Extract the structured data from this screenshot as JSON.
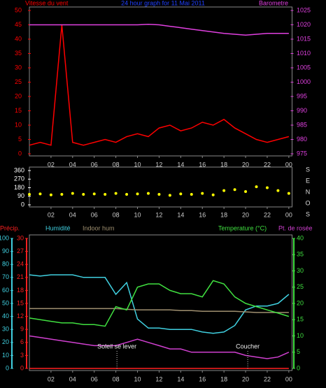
{
  "chart_data": [
    {
      "type": "line",
      "title": "24 hour graph for 11 Mai 2011",
      "ylabel": "Vitesse du vent",
      "y2label": "Barometre",
      "x": [
        0,
        1,
        2,
        3,
        4,
        5,
        6,
        7,
        8,
        9,
        10,
        11,
        12,
        13,
        14,
        15,
        16,
        17,
        18,
        19,
        20,
        21,
        22,
        23,
        24
      ],
      "xlim": [
        0,
        24.3
      ],
      "xticks": [
        {
          "value": 2,
          "label": "02"
        },
        {
          "value": 4,
          "label": "04"
        },
        {
          "value": 6,
          "label": "06"
        },
        {
          "value": 8,
          "label": "08"
        },
        10,
        12,
        14,
        16,
        18,
        20,
        22,
        {
          "value": 24,
          "label": "00"
        }
      ],
      "ylim": [
        0,
        50
      ],
      "yticks": [
        0,
        5,
        10,
        15,
        20,
        25,
        30,
        35,
        40,
        45,
        50
      ],
      "y2lim": [
        975,
        1025
      ],
      "y2ticks": [
        975,
        980,
        985,
        990,
        995,
        1000,
        1005,
        1010,
        1015,
        1020,
        1025
      ],
      "series": [
        {
          "name": "Vitesse du vent",
          "color": "#ff0000",
          "values": [
            3,
            4,
            3,
            45,
            4,
            3,
            4,
            5,
            4,
            6,
            7,
            6,
            9,
            10,
            8,
            9,
            11,
            10,
            12,
            9,
            7,
            5,
            4,
            5,
            6
          ]
        },
        {
          "name": "Barometre",
          "color": "#e040e0",
          "axis": "y2",
          "values": [
            1020,
            1020,
            1020,
            1020,
            1020,
            1020,
            1020,
            1020,
            1020,
            1020,
            1020,
            1020.2,
            1020,
            1019.5,
            1019,
            1018.5,
            1018,
            1017.5,
            1017,
            1016.7,
            1016.4,
            1016.7,
            1017,
            1017,
            1017
          ]
        }
      ]
    },
    {
      "type": "scatter",
      "direction_labels": [
        "S",
        "E",
        "N",
        "O",
        "S"
      ],
      "x": [
        0,
        1,
        2,
        3,
        4,
        5,
        6,
        7,
        8,
        9,
        10,
        11,
        12,
        13,
        14,
        15,
        16,
        17,
        18,
        19,
        20,
        21,
        22,
        23,
        24
      ],
      "xlim": [
        0,
        24.3
      ],
      "xticks": [
        {
          "value": 2,
          "label": "02"
        },
        {
          "value": 4,
          "label": "04"
        },
        {
          "value": 6,
          "label": "06"
        },
        {
          "value": 8,
          "label": "08"
        },
        10,
        12,
        14,
        16,
        18,
        20,
        22,
        {
          "value": 24,
          "label": "00"
        }
      ],
      "ylim": [
        0,
        360
      ],
      "yticks": [
        0,
        90,
        180,
        270,
        360
      ],
      "series": [
        {
          "name": null,
          "color": "#ffff00",
          "values": [
            110,
            115,
            105,
            110,
            120,
            110,
            115,
            110,
            120,
            110,
            115,
            120,
            110,
            100,
            115,
            110,
            120,
            105,
            150,
            160,
            140,
            190,
            180,
            150,
            120
          ]
        }
      ]
    },
    {
      "type": "line",
      "x": [
        0,
        1,
        2,
        3,
        4,
        5,
        6,
        7,
        8,
        9,
        10,
        11,
        12,
        13,
        14,
        15,
        16,
        17,
        18,
        19,
        20,
        21,
        22,
        23,
        24
      ],
      "xlim": [
        0,
        24.3
      ],
      "xticks": [
        {
          "value": 2,
          "label": "02"
        },
        {
          "value": 4,
          "label": "04"
        },
        {
          "value": 6,
          "label": "06"
        },
        {
          "value": 8,
          "label": "08"
        },
        10,
        12,
        14,
        16,
        18,
        20,
        22,
        {
          "value": 24,
          "label": "00"
        }
      ],
      "ylim": [
        0,
        100
      ],
      "yticks": [
        0,
        10,
        20,
        30,
        40,
        50,
        60,
        70,
        80,
        90,
        100
      ],
      "y2lim": [
        0,
        40
      ],
      "y2ticks": [
        0,
        5,
        10,
        15,
        20,
        25,
        30,
        35,
        40
      ],
      "y3lim": [
        0,
        30
      ],
      "y3ticks": [
        0,
        3,
        6,
        9,
        12,
        15,
        18,
        21,
        24,
        27,
        30
      ],
      "series": [
        {
          "name": "Précip.",
          "color": "#ff2020",
          "axis": "y3",
          "values": [
            0,
            0,
            0,
            0,
            0,
            0,
            0,
            0,
            0,
            0,
            0,
            0,
            0,
            0,
            0,
            0,
            0,
            0,
            0,
            0,
            0,
            0,
            0,
            0,
            0
          ]
        },
        {
          "name": "Humidité",
          "color": "#40d0e0",
          "values": [
            72,
            71,
            72,
            72,
            72,
            70,
            70,
            70,
            57,
            66,
            38,
            31,
            31,
            30,
            30,
            30,
            28,
            27,
            28,
            33,
            45,
            48,
            48,
            50,
            57
          ]
        },
        {
          "name": "Indoor hum",
          "color": "#a09070",
          "values": [
            46,
            46,
            46,
            46,
            46,
            46,
            46,
            46,
            46,
            45.5,
            45,
            45,
            45,
            45,
            44.5,
            44.5,
            44,
            44,
            44,
            44,
            43.5,
            43,
            43,
            43,
            43
          ]
        },
        {
          "name": "Temperature (°C)",
          "color": "#40e040",
          "axis": "y2",
          "values": [
            15.5,
            15,
            14.5,
            14,
            14,
            13.5,
            13.5,
            13,
            19,
            18,
            25,
            26,
            26,
            24,
            23,
            23,
            22,
            27,
            26,
            22,
            20,
            19,
            18,
            17,
            16
          ]
        },
        {
          "name": "Pt. de rosée",
          "color": "#d040d0",
          "axis": "y2",
          "values": [
            10,
            9.5,
            9,
            8.5,
            8,
            7.5,
            7,
            7,
            7,
            8,
            9,
            8,
            7,
            6,
            6,
            5,
            5,
            5,
            5,
            5,
            4,
            3.5,
            3,
            3.5,
            5
          ]
        }
      ],
      "annotations": [
        {
          "text": "Soleil se lever",
          "x": 8.1
        },
        {
          "text": "Coucher",
          "x": 20.2
        }
      ]
    }
  ]
}
